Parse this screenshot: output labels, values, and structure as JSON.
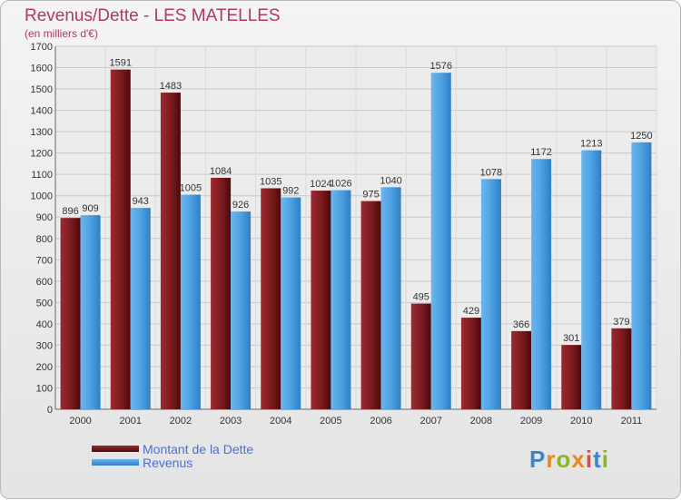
{
  "header": {
    "title": "Revenus/Dette - LES MATELLES",
    "subtitle": "(en milliers d'€)"
  },
  "chart_data": {
    "type": "bar",
    "categories": [
      "2000",
      "2001",
      "2002",
      "2003",
      "2004",
      "2005",
      "2006",
      "2007",
      "2008",
      "2009",
      "2010",
      "2011"
    ],
    "series": [
      {
        "name": "Montant de la Dette",
        "color": "#7a1a1e",
        "values": [
          896,
          1591,
          1483,
          1084,
          1035,
          1024,
          975,
          495,
          429,
          366,
          301,
          379
        ]
      },
      {
        "name": "Revenus",
        "color": "#4a9fe0",
        "values": [
          909,
          943,
          1005,
          926,
          992,
          1026,
          1040,
          1576,
          1078,
          1172,
          1213,
          1250
        ]
      }
    ],
    "ylim": [
      0,
      1700
    ],
    "yticks": [
      0,
      100,
      200,
      300,
      400,
      500,
      600,
      700,
      800,
      900,
      1000,
      1100,
      1200,
      1300,
      1400,
      1500,
      1600,
      1700
    ],
    "grid": true,
    "legend_position": "bottom-left"
  },
  "branding": {
    "logo_letters": [
      {
        "ch": "P",
        "color": "#3f86c9"
      },
      {
        "ch": "r",
        "color": "#e8891e"
      },
      {
        "ch": "o",
        "color": "#8bb62a"
      },
      {
        "ch": "x",
        "color": "#e8891e"
      },
      {
        "ch": "i",
        "color": "#d64a4a"
      },
      {
        "ch": "t",
        "color": "#3f86c9"
      },
      {
        "ch": "i",
        "color": "#8bb62a"
      }
    ]
  }
}
